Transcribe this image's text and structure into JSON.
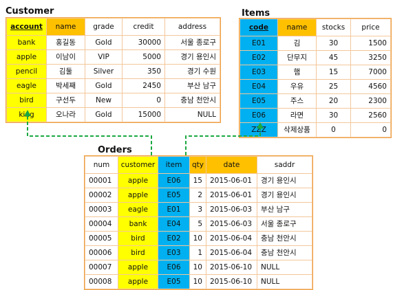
{
  "colors": {
    "yellow": "#ffff00",
    "orange": "#ffc000",
    "blue": "#00b0f0",
    "border": "#f0a040",
    "link": "#1aa841"
  },
  "customer": {
    "title": "Customer",
    "headers": [
      "account",
      "name",
      "grade",
      "credit",
      "address"
    ],
    "rows": [
      [
        "bank",
        "홍길동",
        "Gold",
        "30000",
        "서울 종로구"
      ],
      [
        "apple",
        "이남이",
        "VIP",
        "5000",
        "경기 용인시"
      ],
      [
        "pencil",
        "김둘",
        "Silver",
        "350",
        "경기 수원"
      ],
      [
        "eagle",
        "박세째",
        "Gold",
        "2450",
        "부산 남구"
      ],
      [
        "bird",
        "구선두",
        "New",
        "0",
        "충남 천안시"
      ],
      [
        "king",
        "오나라",
        "Gold",
        "15000",
        "NULL"
      ]
    ]
  },
  "items": {
    "title": "Items",
    "headers": [
      "code",
      "name",
      "stocks",
      "price"
    ],
    "rows": [
      [
        "E01",
        "김",
        "30",
        "1500"
      ],
      [
        "E02",
        "단무지",
        "45",
        "3250"
      ],
      [
        "E03",
        "햄",
        "15",
        "7000"
      ],
      [
        "E04",
        "우유",
        "25",
        "4560"
      ],
      [
        "E05",
        "주스",
        "20",
        "2300"
      ],
      [
        "E06",
        "라면",
        "30",
        "2560"
      ],
      [
        "ZZZ",
        "삭제상품",
        "0",
        "0"
      ]
    ]
  },
  "orders": {
    "title": "Orders",
    "headers": [
      "num",
      "customer",
      "item",
      "qty",
      "date",
      "saddr"
    ],
    "rows": [
      [
        "00001",
        "apple",
        "E06",
        "15",
        "2015-06-01",
        "경기 용인시"
      ],
      [
        "00002",
        "apple",
        "E05",
        "2",
        "2015-06-01",
        "경기 용인시"
      ],
      [
        "00003",
        "eagle",
        "E01",
        "3",
        "2015-06-03",
        "부산 남구"
      ],
      [
        "00004",
        "bank",
        "E04",
        "5",
        "2015-06-03",
        "서울 종로구"
      ],
      [
        "00005",
        "bird",
        "E02",
        "10",
        "2015-06-04",
        "충남 천안시"
      ],
      [
        "00006",
        "bird",
        "E03",
        "1",
        "2015-06-04",
        "충남 천안시"
      ],
      [
        "00007",
        "apple",
        "E06",
        "10",
        "2015-06-10",
        "NULL"
      ],
      [
        "00008",
        "apple",
        "E05",
        "10",
        "2015-06-10",
        "NULL"
      ]
    ]
  }
}
